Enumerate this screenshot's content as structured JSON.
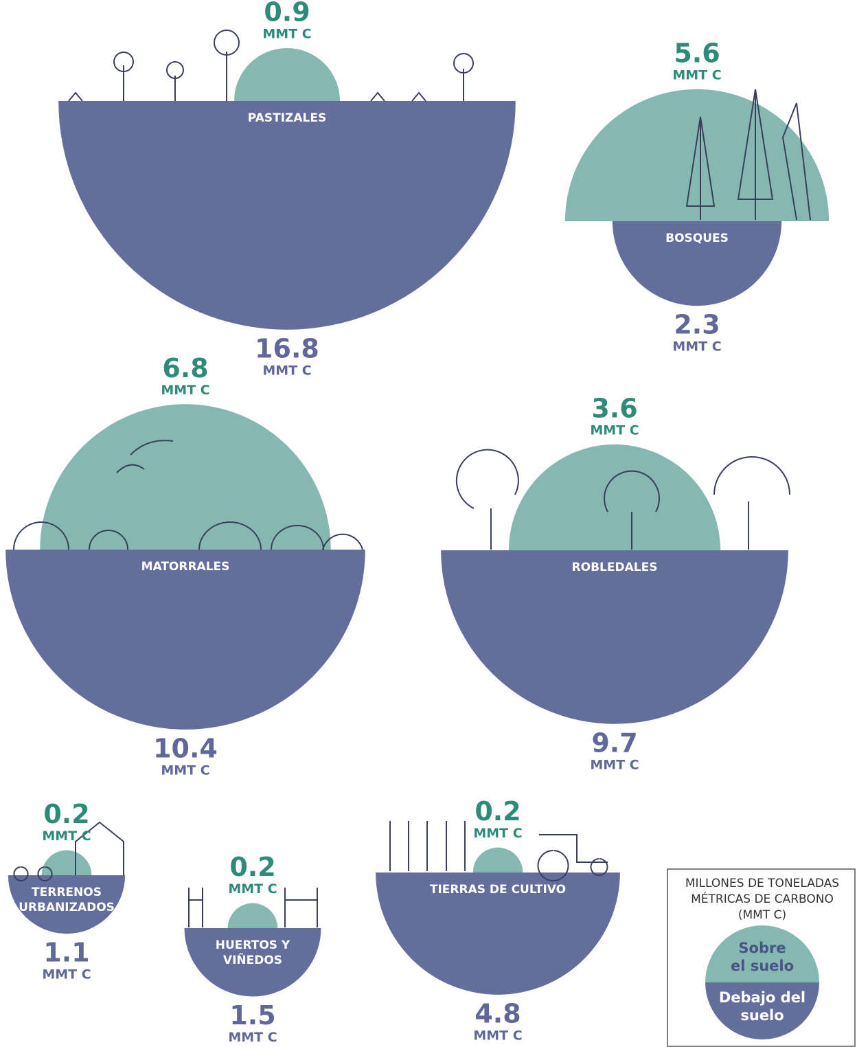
{
  "chart_data": {
    "type": "semicircle",
    "unit": "MMT C",
    "above_color": "#85b8b1",
    "below_color": "#646e9c",
    "items": [
      {
        "label": [
          "PASTIZALES"
        ],
        "above": 0.9,
        "below": 16.8
      },
      {
        "label": [
          "BOSQUES"
        ],
        "above": 5.6,
        "below": 2.3
      },
      {
        "label": [
          "MATORRALES"
        ],
        "above": 6.8,
        "below": 10.4
      },
      {
        "label": [
          "ROBLEDALES"
        ],
        "above": 3.6,
        "below": 9.7
      },
      {
        "label": [
          "TERRENOS",
          "URBANIZADOS"
        ],
        "above": 0.2,
        "below": 1.1
      },
      {
        "label": [
          "HUERTOS Y",
          "VIÑEDOS"
        ],
        "above": 0.2,
        "below": 1.5
      },
      {
        "label": [
          "TIERRAS DE CULTIVO"
        ],
        "above": 0.2,
        "below": 4.8
      }
    ],
    "legend": {
      "title": [
        "MILLONES DE TONELADAS",
        "MÉTRICAS DE CARBONO",
        "(MMT C)"
      ],
      "above": [
        "Sobre",
        "el suelo"
      ],
      "below": [
        "Debajo del",
        "suelo"
      ]
    }
  }
}
